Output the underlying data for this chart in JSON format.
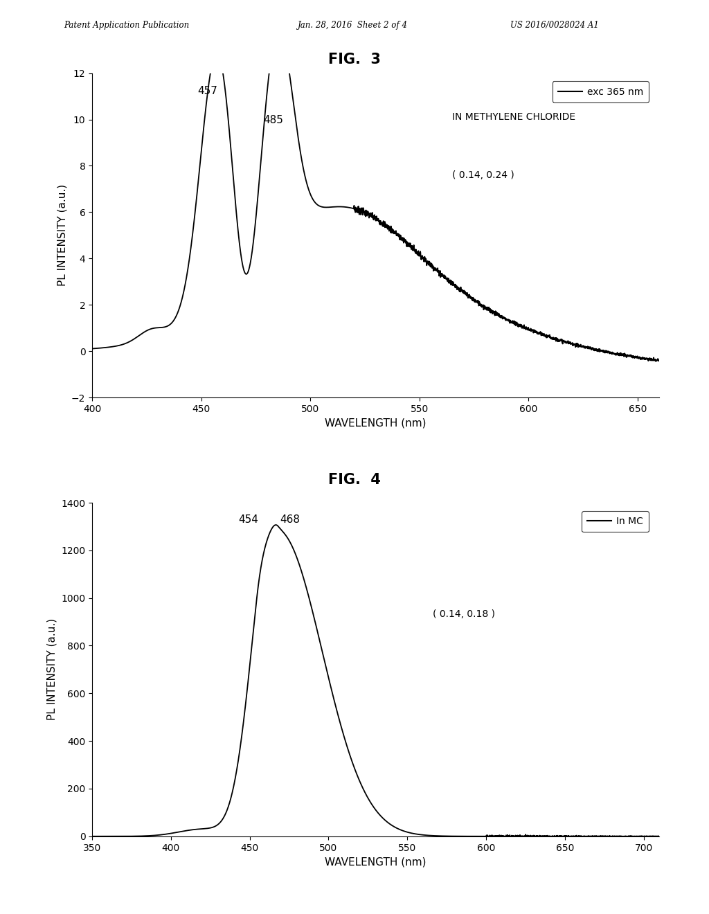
{
  "fig3": {
    "title": "FIG.  3",
    "xlabel": "WAVELENGTH (nm)",
    "ylabel": "PL INTENSITY (a.u.)",
    "xlim": [
      400,
      660
    ],
    "ylim": [
      -2,
      12
    ],
    "xticks": [
      400,
      450,
      500,
      550,
      600,
      650
    ],
    "yticks": [
      -2,
      0,
      2,
      4,
      6,
      8,
      10,
      12
    ],
    "peak1_x": 457,
    "peak1_y": 10.9,
    "peak2_x": 485,
    "peak2_y": 9.5,
    "legend_line": "exc 365 nm",
    "legend_text2": "IN METHYLENE CHLORIDE",
    "annotation": "( 0.14, 0.24 )"
  },
  "fig4": {
    "title": "FIG.  4",
    "xlabel": "WAVELENGTH (nm)",
    "ylabel": "PL INTENSITY (a.u.)",
    "xlim": [
      350,
      710
    ],
    "ylim": [
      0,
      1400
    ],
    "xticks": [
      350,
      400,
      450,
      500,
      550,
      600,
      650,
      700
    ],
    "yticks": [
      0,
      200,
      400,
      600,
      800,
      1000,
      1200,
      1400
    ],
    "peak1_x": 454,
    "peak1_y": 1230,
    "peak2_x": 468,
    "peak2_y": 1280,
    "legend_label": "In MC",
    "annotation": "( 0.14, 0.18 )"
  },
  "header_left": "Patent Application Publication",
  "header_mid": "Jan. 28, 2016  Sheet 2 of 4",
  "header_right": "US 2016/0028024 A1",
  "bg_color": "#ffffff",
  "line_color": "#000000"
}
